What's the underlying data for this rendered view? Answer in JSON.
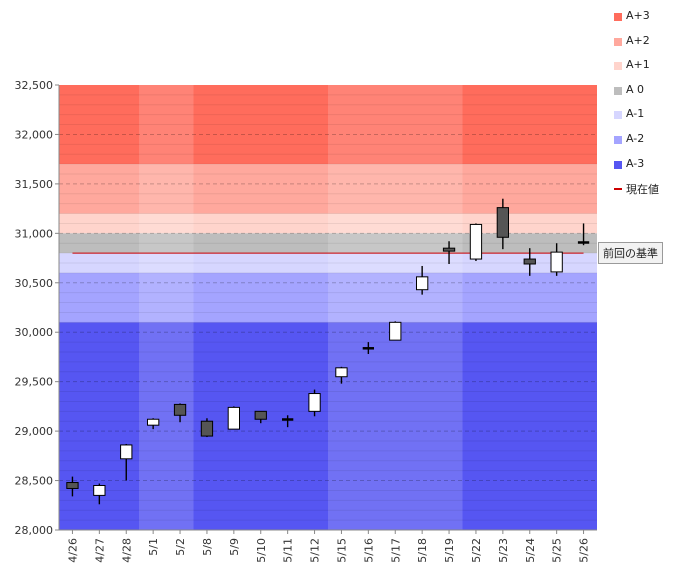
{
  "chart_data": {
    "type": "candlestick",
    "categories": [
      "4/26",
      "4/27",
      "4/28",
      "5/1",
      "5/2",
      "5/8",
      "5/9",
      "5/10",
      "5/11",
      "5/12",
      "5/15",
      "5/16",
      "5/17",
      "5/18",
      "5/19",
      "5/22",
      "5/23",
      "5/24",
      "5/25",
      "5/26"
    ],
    "candles": [
      {
        "open": 28480,
        "close": 28420,
        "high": 28540,
        "low": 28340
      },
      {
        "open": 28350,
        "close": 28450,
        "high": 28470,
        "low": 28260
      },
      {
        "open": 28720,
        "close": 28860,
        "high": 28870,
        "low": 28500
      },
      {
        "open": 29060,
        "close": 29120,
        "high": 29130,
        "low": 29020
      },
      {
        "open": 29270,
        "close": 29160,
        "high": 29280,
        "low": 29090
      },
      {
        "open": 29100,
        "close": 28950,
        "high": 29130,
        "low": 28940
      },
      {
        "open": 29020,
        "close": 29240,
        "high": 29250,
        "low": 29020
      },
      {
        "open": 29200,
        "close": 29120,
        "high": 29200,
        "low": 29080
      },
      {
        "open": 29120,
        "close": 29110,
        "high": 29160,
        "low": 29040
      },
      {
        "open": 29200,
        "close": 29380,
        "high": 29420,
        "low": 29150
      },
      {
        "open": 29550,
        "close": 29640,
        "high": 29650,
        "low": 29480
      },
      {
        "open": 29840,
        "close": 29830,
        "high": 29900,
        "low": 29780
      },
      {
        "open": 29920,
        "close": 30100,
        "high": 30110,
        "low": 29920
      },
      {
        "open": 30430,
        "close": 30560,
        "high": 30670,
        "low": 30380
      },
      {
        "open": 30850,
        "close": 30820,
        "high": 30920,
        "low": 30690
      },
      {
        "open": 30740,
        "close": 31090,
        "high": 31100,
        "low": 30720
      },
      {
        "open": 31260,
        "close": 30960,
        "high": 31350,
        "low": 30840
      },
      {
        "open": 30740,
        "close": 30690,
        "high": 30850,
        "low": 30570
      },
      {
        "open": 30610,
        "close": 30810,
        "high": 30900,
        "low": 30570
      },
      {
        "open": 30910,
        "close": 30900,
        "high": 31100,
        "low": 30880
      }
    ],
    "ylim": [
      28000,
      32500
    ],
    "ytick_values": [
      28000,
      28500,
      29000,
      29500,
      30000,
      30500,
      31000,
      31500,
      32000,
      32500
    ],
    "ytick_labels": [
      "28,000",
      "28,500",
      "29,000",
      "29,500",
      "30,000",
      "30,500",
      "31,000",
      "31,500",
      "32,000",
      "32,500"
    ],
    "bands": [
      {
        "name": "A+3",
        "from": 31700,
        "to": 32500,
        "color": "#ff6c5c"
      },
      {
        "name": "A+2",
        "from": 31200,
        "to": 31700,
        "color": "#ffa89d"
      },
      {
        "name": "A+1",
        "from": 31000,
        "to": 31200,
        "color": "#ffd4cc"
      },
      {
        "name": "A 0",
        "from": 30800,
        "to": 31000,
        "color": "#bdbdbd"
      },
      {
        "name": "A-1",
        "from": 30600,
        "to": 30800,
        "color": "#d6d6ff"
      },
      {
        "name": "A-2",
        "from": 30100,
        "to": 30600,
        "color": "#a4a4ff"
      },
      {
        "name": "A-3",
        "from": 28000,
        "to": 30100,
        "color": "#5656f2"
      }
    ],
    "week_shading": [
      0,
      1,
      0,
      1,
      0,
      1,
      0
    ],
    "week_boundaries": [
      0,
      3,
      5,
      10,
      15,
      20
    ],
    "reference_value": 30800,
    "reference_color": "#cc0000",
    "reference_label": "前回の基準",
    "legend": [
      {
        "label": "A+3",
        "color": "#ff6c5c",
        "kind": "box"
      },
      {
        "label": "A+2",
        "color": "#ffa89d",
        "kind": "box"
      },
      {
        "label": "A+1",
        "color": "#ffd4cc",
        "kind": "box"
      },
      {
        "label": "A 0",
        "color": "#bdbdbd",
        "kind": "box"
      },
      {
        "label": "A-1",
        "color": "#d6d6ff",
        "kind": "box"
      },
      {
        "label": "A-2",
        "color": "#a4a4ff",
        "kind": "box"
      },
      {
        "label": "A-3",
        "color": "#5656f2",
        "kind": "box"
      },
      {
        "label": "現在値",
        "color": "#cc0000",
        "kind": "line"
      }
    ],
    "legend_position": "right",
    "grid": true,
    "up_color": "#ffffff",
    "down_color": "#555555"
  }
}
